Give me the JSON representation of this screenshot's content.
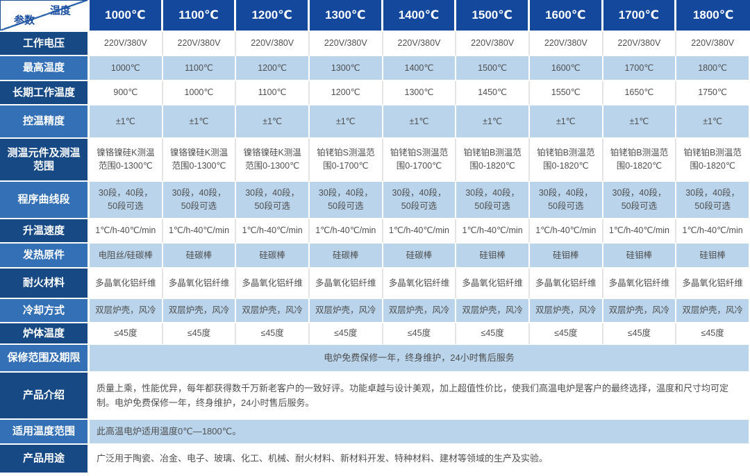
{
  "table": {
    "corner": {
      "top": "温度",
      "bottom": "参数"
    },
    "column_headers": [
      "1000℃",
      "1100℃",
      "1200℃",
      "1300℃",
      "1400℃",
      "1500℃",
      "1600℃",
      "1700℃",
      "1800℃"
    ],
    "rows": [
      {
        "label": "工作电压",
        "cells": [
          "220V/380V",
          "220V/380V",
          "220V/380V",
          "220V/380V",
          "220V/380V",
          "220V/380V",
          "220V/380V",
          "220V/380V",
          "220V/380V"
        ]
      },
      {
        "label": "最高温度",
        "cells": [
          "1000℃",
          "1100℃",
          "1200℃",
          "1300℃",
          "1400℃",
          "1500℃",
          "1600℃",
          "1700℃",
          "1800℃"
        ]
      },
      {
        "label": "长期工作温度",
        "cells": [
          "900℃",
          "1000℃",
          "1100℃",
          "1200℃",
          "1300℃",
          "1450℃",
          "1550℃",
          "1650℃",
          "1750℃"
        ]
      },
      {
        "label": "控温精度",
        "cells": [
          "±1℃",
          "±1℃",
          "±1℃",
          "±1℃",
          "±1℃",
          "±1℃",
          "±1℃",
          "±1℃",
          "±1℃"
        ]
      },
      {
        "label": "测温元件及测温范围",
        "cells": [
          "镍铬镍硅K测温\n范围0-1300℃",
          "镍铬镍硅K测温\n范围0-1300℃",
          "镍铬镍硅K测温\n范围0-1300℃",
          "铂铑铂S测温范\n围0-1700℃",
          "铂铑铂S测温范\n围0-1700℃",
          "铂铑铂B测温范\n围0-1820℃",
          "铂铑铂B测温范\n围0-1820℃",
          "铂铑铂B测温范\n围0-1820℃",
          "铂铑铂B测温范\n围0-1820℃"
        ]
      },
      {
        "label": "程序曲线段",
        "cells": [
          "30段，40段，\n50段可选",
          "30段，40段，\n50段可选",
          "30段，40段，\n50段可选",
          "30段，40段，\n50段可选",
          "30段，40段，\n50段可选",
          "30段，40段，\n50段可选",
          "30段，40段，\n50段可选",
          "30段，40段，\n50段可选",
          "30段，40段，\n50段可选"
        ]
      },
      {
        "label": "升温速度",
        "cells": [
          "1℃/h-40℃/min",
          "1℃/h-40℃/min",
          "1℃/h-40℃/min",
          "1℃/h-40℃/min",
          "1℃/h-40℃/min",
          "1℃/h-40℃/min",
          "1℃/h-40℃/min",
          "1℃/h-40℃/min",
          "1℃/h-40℃/min"
        ]
      },
      {
        "label": "发热原件",
        "cells": [
          "电阻丝/硅碳棒",
          "硅碳棒",
          "硅碳棒",
          "硅碳棒",
          "硅碳棒",
          "硅钼棒",
          "硅钼棒",
          "硅钼棒",
          "硅钼棒"
        ]
      },
      {
        "label": "耐火材料",
        "cells": [
          "多晶氧化铝纤维",
          "多晶氧化铝纤维",
          "多晶氧化铝纤维",
          "多晶氧化铝纤维",
          "多晶氧化铝纤维",
          "多晶氧化铝纤维",
          "多晶氧化铝纤维",
          "多晶氧化铝纤维",
          "多晶氧化铝纤维"
        ]
      },
      {
        "label": "冷却方式",
        "cells": [
          "双层炉壳，风冷",
          "双层炉壳，风冷",
          "双层炉壳，风冷",
          "双层炉壳，风冷",
          "双层炉壳，风冷",
          "双层炉壳，风冷",
          "双层炉壳，风冷",
          "双层炉壳，风冷",
          "双层炉壳，风冷"
        ]
      },
      {
        "label": "炉体温度",
        "cells": [
          "≤45度",
          "≤45度",
          "≤45度",
          "≤45度",
          "≤45度",
          "≤45度",
          "≤45度",
          "≤45度",
          "≤45度"
        ]
      },
      {
        "label": "保修范围及期限",
        "span_text": "电炉免费保修一年，终身维护，24小时售后服务",
        "align": "center"
      },
      {
        "label": "产品介绍",
        "span_text": "质量上乘，性能优异，每年都获得数千万新老客户的一致好评。功能卓越与设计美观，加上超值性价比，使我们高温电炉是客户的最终选择，温度和尺寸均可定制。电炉免费保修一年，终身维护，24小时售后服务。",
        "align": "left"
      },
      {
        "label": "适用温度范围",
        "span_text": "此高温电炉适用温度0℃—1800℃。",
        "align": "left"
      },
      {
        "label": "产品用途",
        "span_text": "广泛用于陶瓷、冶金、电子、玻璃、化工、机械、耐火材料、新材料开发、特种材料、建材等领域的生产及实验。",
        "align": "left"
      }
    ]
  },
  "colors": {
    "header_bg": "#14489c",
    "label_dark_bg": "#174a85",
    "label_light_bg": "#3470b6",
    "row_blue_bg": "#b9d4eb",
    "row_white_bg": "#ffffff",
    "header_text": "#ffffff",
    "cell_text": "#4f4f4f",
    "corner_text": "#1d4fa1",
    "diagonal_line": "#2e66b0",
    "white_row_divider": "#e4e4e4"
  }
}
